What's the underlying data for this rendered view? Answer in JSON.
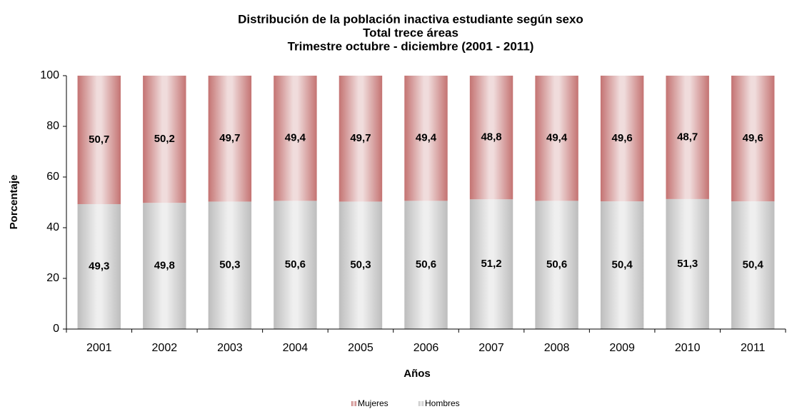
{
  "chart_data": {
    "type": "stacked_bar",
    "title": [
      "Distribución de la población inactiva estudiante según sexo",
      "Total trece áreas",
      "Trimestre octubre - diciembre (2001 - 2011)"
    ],
    "x_label": "Años",
    "y_label": "Porcentaje",
    "categories": [
      "2001",
      "2002",
      "2003",
      "2004",
      "2005",
      "2006",
      "2007",
      "2008",
      "2009",
      "2010",
      "2011"
    ],
    "series": [
      {
        "name": "Mujeres",
        "color": "#c47372",
        "values": [
          50.7,
          50.2,
          49.7,
          49.4,
          49.7,
          49.4,
          48.8,
          49.4,
          49.6,
          48.7,
          49.6
        ],
        "value_labels": [
          "50,7",
          "50,2",
          "49,7",
          "49,4",
          "49,7",
          "49,4",
          "48,8",
          "49,4",
          "49,6",
          "48,7",
          "49,6"
        ]
      },
      {
        "name": "Hombres",
        "color": "#bdbdbd",
        "values": [
          49.3,
          49.8,
          50.3,
          50.6,
          50.3,
          50.6,
          51.2,
          50.6,
          50.4,
          51.3,
          50.4
        ],
        "value_labels": [
          "49,3",
          "49,8",
          "50,3",
          "50,6",
          "50,3",
          "50,6",
          "51,2",
          "50,6",
          "50,4",
          "51,3",
          "50,4"
        ]
      }
    ],
    "ylim": [
      0,
      100
    ],
    "yticks": [
      0,
      20,
      40,
      60,
      80,
      100
    ],
    "grid": false,
    "legend": "bottom"
  }
}
